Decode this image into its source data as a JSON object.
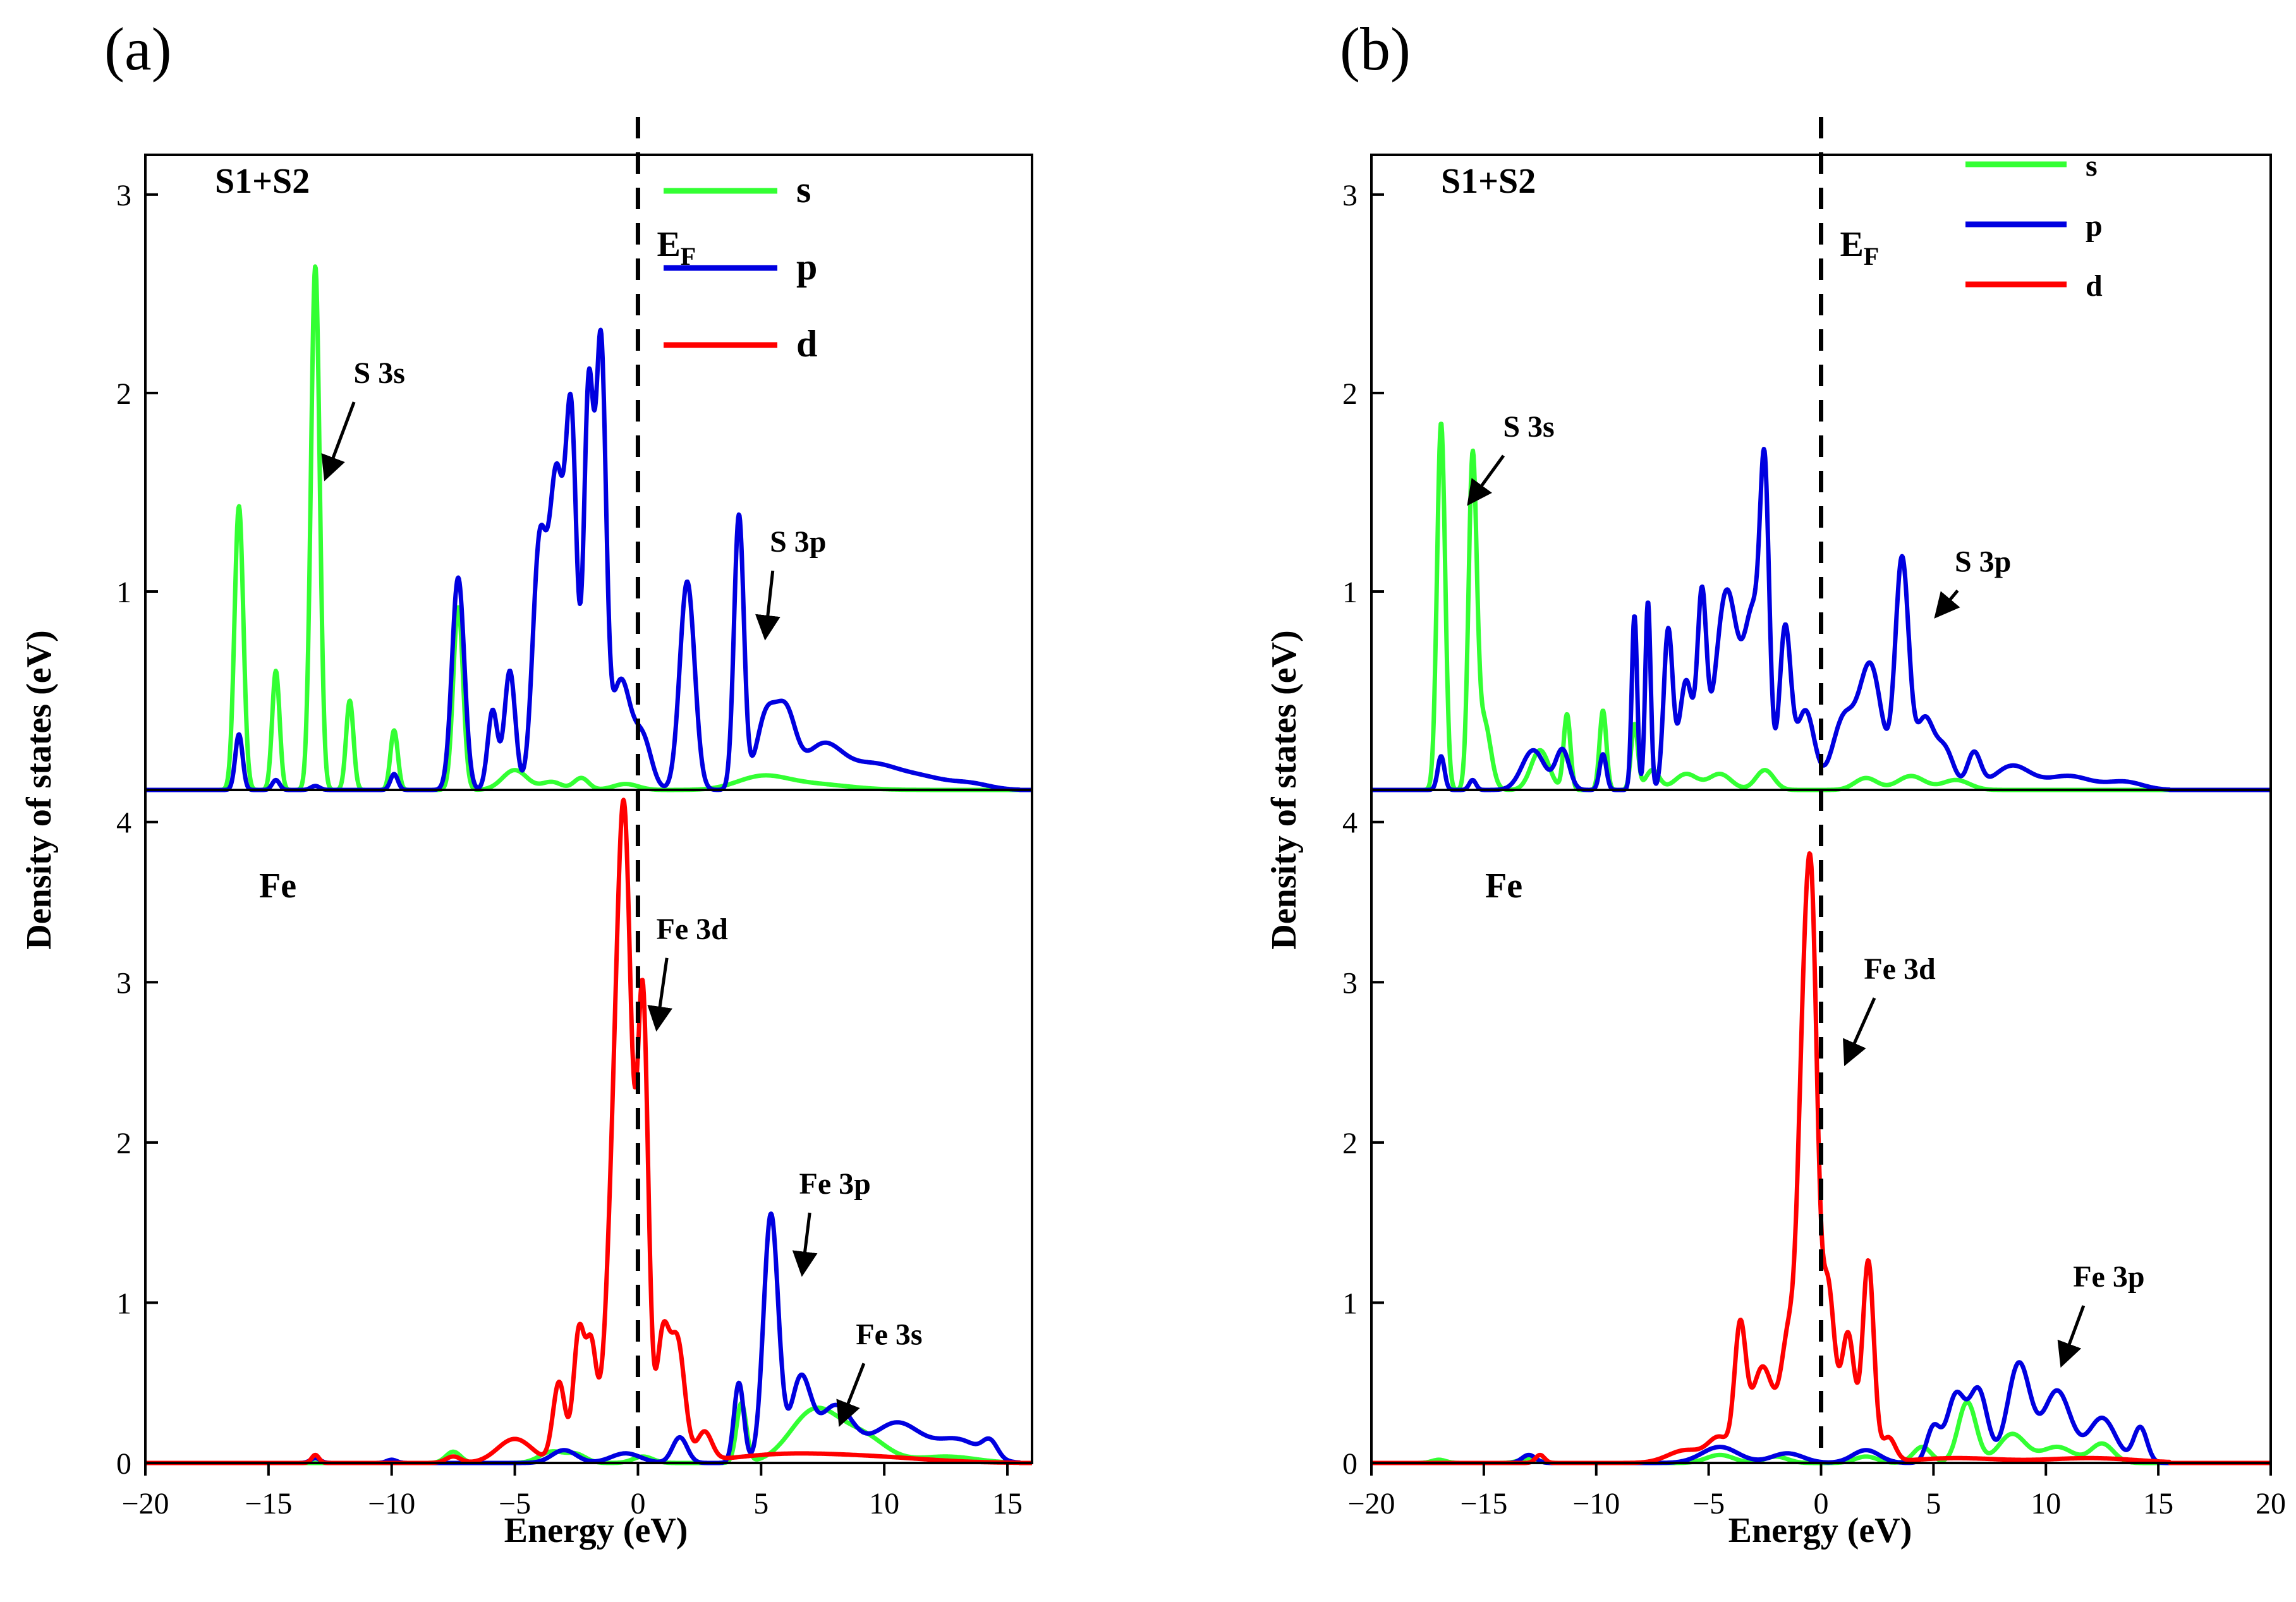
{
  "figure": {
    "panels": [
      "(a)",
      "(b)"
    ]
  },
  "colors": {
    "s": "#33ff33",
    "p": "#0000e0",
    "d": "#ff0000"
  },
  "chart_data": [
    {
      "id": "a",
      "panel_label": "(a)",
      "type": "line",
      "xlabel": "Energy (eV)",
      "ylabel": "Density of states (eV)",
      "xlim": [
        -20,
        16
      ],
      "xticks": [
        -20,
        -15,
        -10,
        -5,
        0,
        5,
        10,
        15
      ],
      "fermi_label": "E",
      "fermi_sub": "F",
      "legend": [
        "s",
        "p",
        "d"
      ],
      "subplots": [
        {
          "id": "top",
          "label": "S1+S2",
          "ylim": [
            0,
            3.2
          ],
          "yticks": [
            1,
            2,
            3
          ],
          "annotations": [
            {
              "text": "S 3s",
              "tx": -10.5,
              "ty": 2.05,
              "ax": -12.6,
              "ay": 1.6
            },
            {
              "text": "S 3p",
              "tx": 6.5,
              "ty": 1.2,
              "ax": 5.2,
              "ay": 0.8
            }
          ],
          "series": [
            {
              "name": "s",
              "peaks": [
                [
                  -16.2,
                  1.43,
                  0.18
                ],
                [
                  -14.7,
                  0.6,
                  0.15
                ],
                [
                  -13.1,
                  2.64,
                  0.18
                ],
                [
                  -11.7,
                  0.45,
                  0.15
                ],
                [
                  -9.9,
                  0.3,
                  0.15
                ],
                [
                  -7.3,
                  0.92,
                  0.2
                ],
                [
                  -5.0,
                  0.1,
                  0.5
                ],
                [
                  -3.5,
                  0.04,
                  0.4
                ],
                [
                  -2.3,
                  0.06,
                  0.3
                ],
                [
                  -0.5,
                  0.03,
                  0.5
                ],
                [
                  5.0,
                  0.06,
                  1.0
                ],
                [
                  7.0,
                  0.03,
                  1.5
                ]
              ]
            },
            {
              "name": "p",
              "peaks": [
                [
                  -16.2,
                  0.28,
                  0.15
                ],
                [
                  -14.7,
                  0.05,
                  0.15
                ],
                [
                  -13.1,
                  0.02,
                  0.18
                ],
                [
                  -9.9,
                  0.08,
                  0.15
                ],
                [
                  -7.3,
                  1.07,
                  0.25
                ],
                [
                  -5.9,
                  0.4,
                  0.2
                ],
                [
                  -5.2,
                  0.6,
                  0.22
                ],
                [
                  -4.0,
                  1.2,
                  0.28
                ],
                [
                  -3.3,
                  1.55,
                  0.3
                ],
                [
                  -2.7,
                  1.75,
                  0.22
                ],
                [
                  -2.0,
                  2.0,
                  0.2
                ],
                [
                  -1.5,
                  2.15,
                  0.2
                ],
                [
                  -0.7,
                  0.55,
                  0.4
                ],
                [
                  0.2,
                  0.25,
                  0.35
                ],
                [
                  2.0,
                  1.05,
                  0.3
                ],
                [
                  4.1,
                  1.38,
                  0.2
                ],
                [
                  5.2,
                  0.36,
                  0.4
                ],
                [
                  6.0,
                  0.35,
                  0.4
                ],
                [
                  7.5,
                  0.22,
                  0.8
                ],
                [
                  9.5,
                  0.12,
                  1.0
                ],
                [
                  11.5,
                  0.06,
                  1.0
                ],
                [
                  13.5,
                  0.03,
                  0.8
                ]
              ]
            },
            {
              "name": "d",
              "peaks": []
            }
          ]
        },
        {
          "id": "bottom",
          "label": "Fe",
          "ylim": [
            0,
            4.2
          ],
          "yticks": [
            0,
            1,
            2,
            3,
            4
          ],
          "annotations": [
            {
              "text": "Fe 3d",
              "tx": 2.2,
              "ty": 3.27,
              "ax": 0.8,
              "ay": 2.75
            },
            {
              "text": "Fe 3p",
              "tx": 8.0,
              "ty": 1.68,
              "ax": 6.7,
              "ay": 1.22
            },
            {
              "text": "Fe 3s",
              "tx": 10.2,
              "ty": 0.74,
              "ax": 8.3,
              "ay": 0.28
            }
          ],
          "series": [
            {
              "name": "s",
              "peaks": [
                [
                  -7.5,
                  0.07,
                  0.3
                ],
                [
                  -3.5,
                  0.07,
                  0.5
                ],
                [
                  -2.5,
                  0.05,
                  0.4
                ],
                [
                  0.2,
                  0.04,
                  0.4
                ],
                [
                  4.2,
                  0.37,
                  0.2
                ],
                [
                  7.2,
                  0.33,
                  1.0
                ],
                [
                  9.2,
                  0.15,
                  0.9
                ],
                [
                  12.5,
                  0.04,
                  1.2
                ]
              ]
            },
            {
              "name": "p",
              "peaks": [
                [
                  -13.1,
                  0.03,
                  0.2
                ],
                [
                  -10,
                  0.02,
                  0.2
                ],
                [
                  -3.0,
                  0.08,
                  0.5
                ],
                [
                  -0.5,
                  0.06,
                  0.6
                ],
                [
                  1.7,
                  0.16,
                  0.3
                ],
                [
                  4.1,
                  0.5,
                  0.2
                ],
                [
                  5.4,
                  1.55,
                  0.3
                ],
                [
                  6.6,
                  0.5,
                  0.4
                ],
                [
                  8.0,
                  0.35,
                  0.7
                ],
                [
                  10.5,
                  0.25,
                  1.0
                ],
                [
                  13.0,
                  0.14,
                  0.9
                ],
                [
                  14.3,
                  0.1,
                  0.3
                ]
              ]
            },
            {
              "name": "d",
              "peaks": [
                [
                  -13.1,
                  0.05,
                  0.15
                ],
                [
                  -7.5,
                  0.04,
                  0.3
                ],
                [
                  -5.0,
                  0.15,
                  0.7
                ],
                [
                  -3.2,
                  0.5,
                  0.25
                ],
                [
                  -2.4,
                  0.8,
                  0.22
                ],
                [
                  -1.9,
                  0.7,
                  0.22
                ],
                [
                  -0.9,
                  1.9,
                  0.35
                ],
                [
                  -0.5,
                  3.0,
                  0.28
                ],
                [
                  0.2,
                  2.85,
                  0.22
                ],
                [
                  1.0,
                  0.75,
                  0.25
                ],
                [
                  1.6,
                  0.75,
                  0.3
                ],
                [
                  2.7,
                  0.18,
                  0.3
                ],
                [
                  5.5,
                  0.04,
                  2.0
                ],
                [
                  9.0,
                  0.04,
                  2.5
                ]
              ]
            }
          ]
        }
      ]
    },
    {
      "id": "b",
      "panel_label": "(b)",
      "type": "line",
      "xlabel": "Energy (eV)",
      "ylabel": "Density of states (eV)",
      "xlim": [
        -20,
        20
      ],
      "xticks": [
        -20,
        -15,
        -10,
        -5,
        0,
        5,
        10,
        15,
        20
      ],
      "fermi_label": "E",
      "fermi_sub": "F",
      "legend": [
        "s",
        "p",
        "d"
      ],
      "subplots": [
        {
          "id": "top",
          "label": "S1+S2",
          "ylim": [
            0,
            3.2
          ],
          "yticks": [
            1,
            2,
            3
          ],
          "annotations": [
            {
              "text": "S 3s",
              "tx": -13.0,
              "ty": 1.78,
              "ax": -15.5,
              "ay": 1.47
            },
            {
              "text": "S 3p",
              "tx": 7.2,
              "ty": 1.1,
              "ax": 5.3,
              "ay": 0.9
            }
          ],
          "series": [
            {
              "name": "s",
              "peaks": [
                [
                  -16.9,
                  1.85,
                  0.18
                ],
                [
                  -15.5,
                  1.62,
                  0.18
                ],
                [
                  -15.0,
                  0.35,
                  0.3
                ],
                [
                  -12.5,
                  0.2,
                  0.4
                ],
                [
                  -11.3,
                  0.38,
                  0.15
                ],
                [
                  -9.7,
                  0.4,
                  0.15
                ],
                [
                  -8.3,
                  0.33,
                  0.15
                ],
                [
                  -7.5,
                  0.1,
                  0.3
                ],
                [
                  -6.0,
                  0.08,
                  0.5
                ],
                [
                  -4.5,
                  0.08,
                  0.5
                ],
                [
                  -2.5,
                  0.1,
                  0.4
                ],
                [
                  2.0,
                  0.06,
                  0.5
                ],
                [
                  4.0,
                  0.07,
                  0.6
                ],
                [
                  6.0,
                  0.05,
                  0.6
                ]
              ]
            },
            {
              "name": "p",
              "peaks": [
                [
                  -16.9,
                  0.17,
                  0.15
                ],
                [
                  -15.5,
                  0.05,
                  0.15
                ],
                [
                  -12.8,
                  0.2,
                  0.5
                ],
                [
                  -11.5,
                  0.2,
                  0.3
                ],
                [
                  -9.7,
                  0.18,
                  0.15
                ],
                [
                  -8.3,
                  0.88,
                  0.12
                ],
                [
                  -7.7,
                  0.95,
                  0.12
                ],
                [
                  -6.8,
                  0.8,
                  0.2
                ],
                [
                  -6.0,
                  0.55,
                  0.3
                ],
                [
                  -5.3,
                  0.9,
                  0.2
                ],
                [
                  -4.2,
                  1.0,
                  0.5
                ],
                [
                  -3.0,
                  0.85,
                  0.4
                ],
                [
                  -2.5,
                  1.3,
                  0.2
                ],
                [
                  -1.6,
                  0.8,
                  0.25
                ],
                [
                  -0.7,
                  0.4,
                  0.4
                ],
                [
                  1.0,
                  0.35,
                  0.5
                ],
                [
                  2.2,
                  0.62,
                  0.5
                ],
                [
                  3.6,
                  1.15,
                  0.3
                ],
                [
                  4.6,
                  0.35,
                  0.4
                ],
                [
                  5.5,
                  0.2,
                  0.4
                ],
                [
                  6.8,
                  0.18,
                  0.3
                ],
                [
                  8.5,
                  0.12,
                  0.8
                ],
                [
                  11.0,
                  0.07,
                  1.0
                ],
                [
                  13.5,
                  0.04,
                  0.8
                ]
              ]
            },
            {
              "name": "d",
              "peaks": []
            }
          ]
        },
        {
          "id": "bottom",
          "label": "Fe",
          "ylim": [
            0,
            4.2
          ],
          "yticks": [
            0,
            1,
            2,
            3,
            4
          ],
          "annotations": [
            {
              "text": "Fe 3d",
              "tx": 3.5,
              "ty": 3.02,
              "ax": 1.2,
              "ay": 2.53
            },
            {
              "text": "Fe 3p",
              "tx": 12.8,
              "ty": 1.1,
              "ax": 10.8,
              "ay": 0.65
            }
          ],
          "series": [
            {
              "name": "s",
              "peaks": [
                [
                  -17,
                  0.02,
                  0.3
                ],
                [
                  -13,
                  0.03,
                  0.4
                ],
                [
                  -4.5,
                  0.05,
                  0.6
                ],
                [
                  -2,
                  0.04,
                  0.5
                ],
                [
                  2,
                  0.04,
                  0.5
                ],
                [
                  4.5,
                  0.1,
                  0.4
                ],
                [
                  6.5,
                  0.38,
                  0.4
                ],
                [
                  8.5,
                  0.18,
                  0.6
                ],
                [
                  10.5,
                  0.1,
                  0.7
                ],
                [
                  12.5,
                  0.12,
                  0.5
                ]
              ]
            },
            {
              "name": "p",
              "peaks": [
                [
                  -13,
                  0.05,
                  0.3
                ],
                [
                  -4.5,
                  0.1,
                  0.8
                ],
                [
                  -1.5,
                  0.06,
                  0.7
                ],
                [
                  2.0,
                  0.08,
                  0.6
                ],
                [
                  5.0,
                  0.22,
                  0.3
                ],
                [
                  6.0,
                  0.42,
                  0.4
                ],
                [
                  7.0,
                  0.45,
                  0.4
                ],
                [
                  8.8,
                  0.62,
                  0.5
                ],
                [
                  10.5,
                  0.45,
                  0.6
                ],
                [
                  12.5,
                  0.28,
                  0.6
                ],
                [
                  14.2,
                  0.22,
                  0.3
                ]
              ]
            },
            {
              "name": "d",
              "peaks": [
                [
                  -12.5,
                  0.05,
                  0.2
                ],
                [
                  -6.0,
                  0.08,
                  0.8
                ],
                [
                  -4.5,
                  0.15,
                  0.5
                ],
                [
                  -3.6,
                  0.78,
                  0.25
                ],
                [
                  -2.6,
                  0.6,
                  0.5
                ],
                [
                  -1.4,
                  0.8,
                  0.35
                ],
                [
                  -0.8,
                  2.0,
                  0.25
                ],
                [
                  -0.4,
                  3.0,
                  0.25
                ],
                [
                  0.3,
                  1.1,
                  0.3
                ],
                [
                  1.2,
                  0.8,
                  0.3
                ],
                [
                  2.1,
                  1.25,
                  0.25
                ],
                [
                  3.0,
                  0.15,
                  0.3
                ],
                [
                  6.0,
                  0.03,
                  2.0
                ],
                [
                  12.0,
                  0.03,
                  2.0
                ]
              ]
            }
          ]
        }
      ]
    }
  ]
}
